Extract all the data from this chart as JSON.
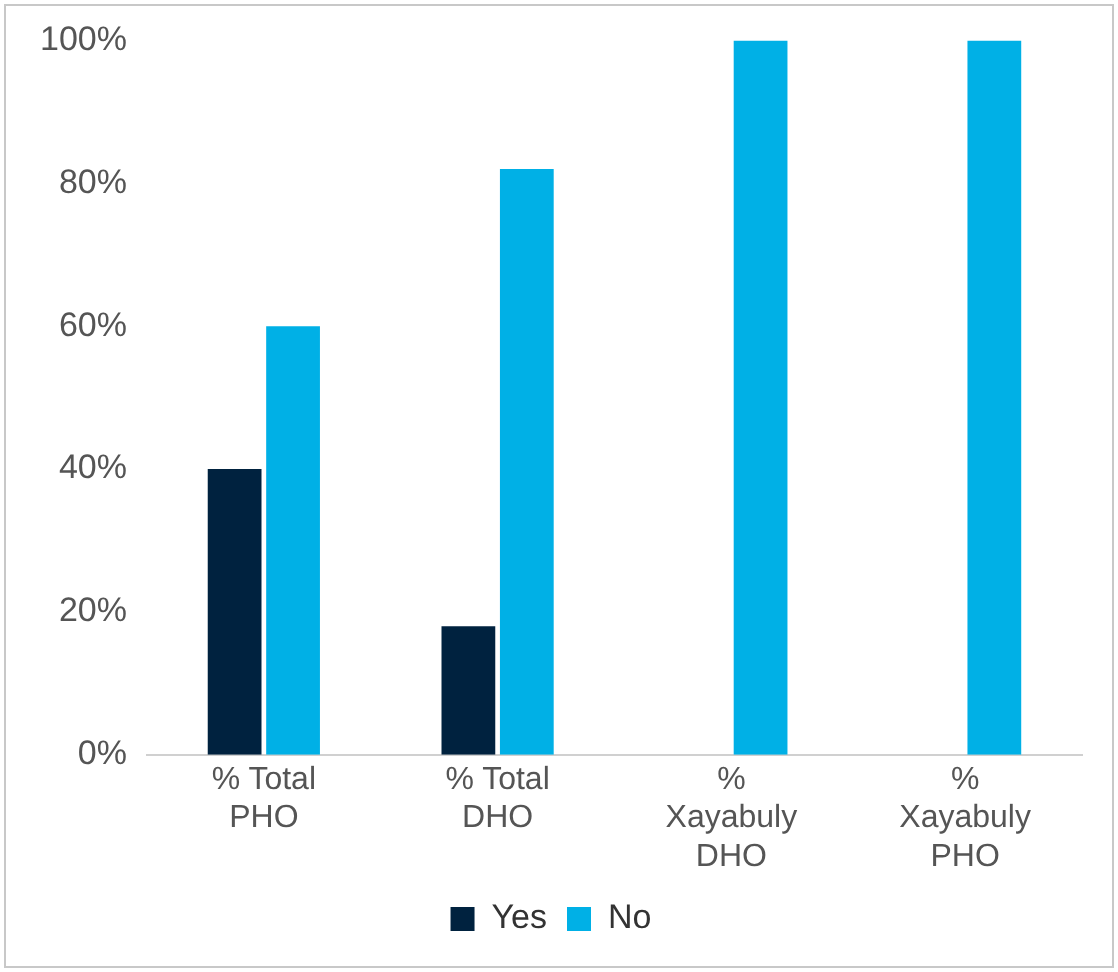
{
  "chart_data": {
    "type": "bar",
    "categories": [
      "% Total PHO",
      "% Total DHO",
      "% Xayabuly DHO",
      "% Xayabuly PHO"
    ],
    "series": [
      {
        "name": "Yes",
        "color": "#00223f",
        "values": [
          40,
          18,
          0,
          0
        ]
      },
      {
        "name": "No",
        "color": "#00b0e6",
        "values": [
          60,
          82,
          100,
          100
        ]
      }
    ],
    "ylim": [
      0,
      100
    ],
    "yticks": [
      {
        "value": 0,
        "label": "0%"
      },
      {
        "value": 20,
        "label": "20%"
      },
      {
        "value": 40,
        "label": "40%"
      },
      {
        "value": 60,
        "label": "60%"
      },
      {
        "value": 80,
        "label": "80%"
      },
      {
        "value": 100,
        "label": "100%"
      }
    ],
    "grid": false,
    "legend": "bottom"
  }
}
